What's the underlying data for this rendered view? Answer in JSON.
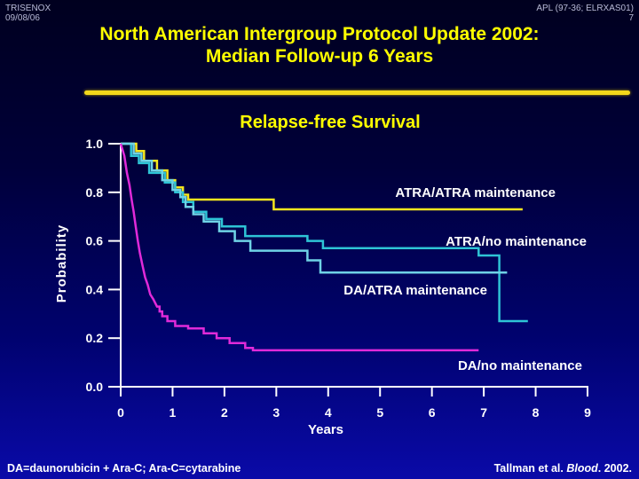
{
  "header": {
    "top_left_line1": "TRISENOX",
    "top_left_line2": "09/08/06",
    "top_right_line1": "APL (97-36; ELRXAS01)",
    "top_right_line2": "7",
    "title_line1": "North American Intergroup Protocol Update 2002:",
    "title_line2": "Median Follow-up 6 Years"
  },
  "footer": {
    "note": "DA=daunorubicin + Ara-C; Ara-C=cytarabine",
    "citation_prefix": "Tallman et al. ",
    "citation_journal": "Blood",
    "citation_suffix": ". 2002."
  },
  "colors": {
    "title": "#ffff00",
    "axis": "#ffffff",
    "atra_atra": "#f5e61e",
    "atra_none": "#2ec4d6",
    "da_atra": "#6fd3e6",
    "da_none": "#e02ad9"
  },
  "chart_data": {
    "type": "line",
    "step": true,
    "title": "Relapse-free Survival",
    "xlabel": "Years",
    "ylabel": "Probability",
    "xlim": [
      0,
      9
    ],
    "ylim": [
      0,
      1
    ],
    "x_ticks": [
      "0",
      "1",
      "2",
      "3",
      "4",
      "5",
      "6",
      "7",
      "8",
      "9"
    ],
    "y_ticks": [
      "0.0",
      "0.2",
      "0.4",
      "0.6",
      "0.8",
      "1.0"
    ],
    "series": [
      {
        "name": "ATRA/ATRA maintenance",
        "color": "#f5e61e",
        "points": [
          [
            0,
            1.0
          ],
          [
            0.3,
            1.0
          ],
          [
            0.3,
            0.97
          ],
          [
            0.45,
            0.97
          ],
          [
            0.45,
            0.93
          ],
          [
            0.7,
            0.93
          ],
          [
            0.7,
            0.89
          ],
          [
            0.9,
            0.89
          ],
          [
            0.9,
            0.85
          ],
          [
            1.05,
            0.85
          ],
          [
            1.05,
            0.82
          ],
          [
            1.2,
            0.82
          ],
          [
            1.2,
            0.79
          ],
          [
            1.3,
            0.79
          ],
          [
            1.3,
            0.77
          ],
          [
            2.95,
            0.77
          ],
          [
            2.95,
            0.73
          ],
          [
            7.75,
            0.73
          ]
        ]
      },
      {
        "name": "ATRA/no maintenance",
        "color": "#2ec4d6",
        "points": [
          [
            0,
            1.0
          ],
          [
            0.2,
            1.0
          ],
          [
            0.2,
            0.95
          ],
          [
            0.35,
            0.95
          ],
          [
            0.35,
            0.92
          ],
          [
            0.55,
            0.92
          ],
          [
            0.55,
            0.88
          ],
          [
            0.85,
            0.88
          ],
          [
            0.85,
            0.84
          ],
          [
            1.05,
            0.84
          ],
          [
            1.05,
            0.8
          ],
          [
            1.2,
            0.8
          ],
          [
            1.2,
            0.76
          ],
          [
            1.4,
            0.76
          ],
          [
            1.4,
            0.72
          ],
          [
            1.65,
            0.72
          ],
          [
            1.65,
            0.69
          ],
          [
            1.95,
            0.69
          ],
          [
            1.95,
            0.66
          ],
          [
            2.4,
            0.66
          ],
          [
            2.4,
            0.62
          ],
          [
            3.6,
            0.62
          ],
          [
            3.6,
            0.6
          ],
          [
            3.9,
            0.6
          ],
          [
            3.9,
            0.57
          ],
          [
            6.9,
            0.57
          ],
          [
            6.9,
            0.54
          ],
          [
            7.3,
            0.54
          ],
          [
            7.3,
            0.27
          ],
          [
            7.85,
            0.27
          ]
        ]
      },
      {
        "name": "DA/ATRA maintenance",
        "color": "#6fd3e6",
        "points": [
          [
            0,
            1.0
          ],
          [
            0.25,
            1.0
          ],
          [
            0.25,
            0.96
          ],
          [
            0.4,
            0.96
          ],
          [
            0.4,
            0.93
          ],
          [
            0.6,
            0.93
          ],
          [
            0.6,
            0.89
          ],
          [
            0.8,
            0.89
          ],
          [
            0.8,
            0.85
          ],
          [
            1.0,
            0.85
          ],
          [
            1.0,
            0.81
          ],
          [
            1.15,
            0.81
          ],
          [
            1.15,
            0.78
          ],
          [
            1.25,
            0.78
          ],
          [
            1.25,
            0.74
          ],
          [
            1.4,
            0.74
          ],
          [
            1.4,
            0.71
          ],
          [
            1.6,
            0.71
          ],
          [
            1.6,
            0.68
          ],
          [
            1.9,
            0.68
          ],
          [
            1.9,
            0.64
          ],
          [
            2.2,
            0.64
          ],
          [
            2.2,
            0.6
          ],
          [
            2.5,
            0.6
          ],
          [
            2.5,
            0.56
          ],
          [
            3.6,
            0.56
          ],
          [
            3.6,
            0.52
          ],
          [
            3.85,
            0.52
          ],
          [
            3.85,
            0.47
          ],
          [
            7.45,
            0.47
          ]
        ]
      },
      {
        "name": "DA/no maintenance",
        "color": "#e02ad9",
        "points": [
          [
            0,
            1.0
          ],
          [
            0.07,
            0.95
          ],
          [
            0.12,
            0.88
          ],
          [
            0.17,
            0.83
          ],
          [
            0.21,
            0.77
          ],
          [
            0.25,
            0.72
          ],
          [
            0.29,
            0.66
          ],
          [
            0.33,
            0.6
          ],
          [
            0.37,
            0.55
          ],
          [
            0.42,
            0.5
          ],
          [
            0.47,
            0.45
          ],
          [
            0.52,
            0.42
          ],
          [
            0.57,
            0.38
          ],
          [
            0.63,
            0.36
          ],
          [
            0.7,
            0.33
          ],
          [
            0.75,
            0.33
          ],
          [
            0.75,
            0.31
          ],
          [
            0.8,
            0.31
          ],
          [
            0.8,
            0.29
          ],
          [
            0.9,
            0.29
          ],
          [
            0.9,
            0.27
          ],
          [
            1.05,
            0.27
          ],
          [
            1.05,
            0.25
          ],
          [
            1.3,
            0.25
          ],
          [
            1.3,
            0.24
          ],
          [
            1.6,
            0.24
          ],
          [
            1.6,
            0.22
          ],
          [
            1.85,
            0.22
          ],
          [
            1.85,
            0.2
          ],
          [
            2.1,
            0.2
          ],
          [
            2.1,
            0.18
          ],
          [
            2.4,
            0.18
          ],
          [
            2.4,
            0.16
          ],
          [
            2.55,
            0.16
          ],
          [
            2.55,
            0.15
          ],
          [
            6.9,
            0.15
          ]
        ]
      }
    ]
  }
}
